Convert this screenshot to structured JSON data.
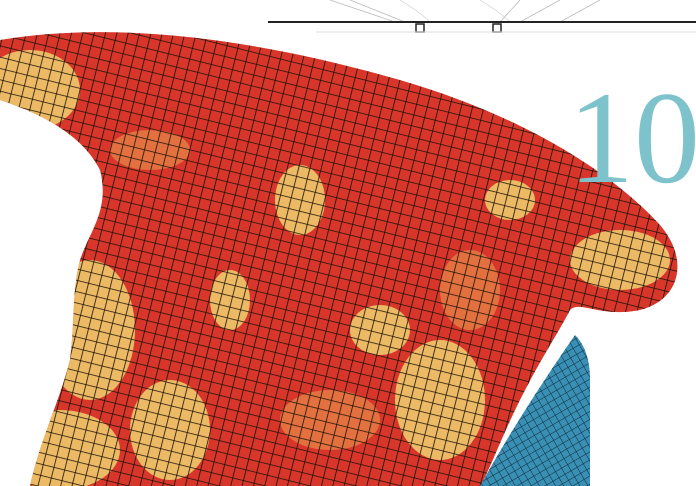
{
  "page_number": "10"
}
